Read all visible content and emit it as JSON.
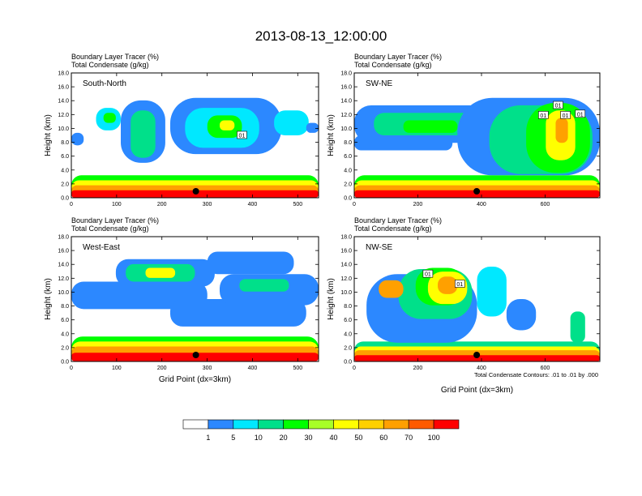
{
  "chart_data": {
    "type": "heatmap",
    "title": "2013-08-13_12:00:00",
    "colorbar": {
      "colors": [
        "#ffffff",
        "#2c88ff",
        "#00e8ff",
        "#00e08a",
        "#00ff00",
        "#a8ff28",
        "#ffff00",
        "#ffd000",
        "#ffa000",
        "#ff5a00",
        "#ff0000"
      ],
      "labels": [
        "1",
        "5",
        "10",
        "20",
        "30",
        "40",
        "50",
        "60",
        "70",
        "100"
      ]
    },
    "panels": [
      {
        "name": "South-North",
        "line1": "Boundary Layer Tracer   (%)",
        "line2": "Total Condensate   (g/kg)",
        "ylabel": "Height (km)",
        "xlabel": "",
        "xlim": [
          0,
          546
        ],
        "ylim": [
          0,
          18
        ],
        "xticks": [
          0,
          100,
          200,
          300,
          400,
          500
        ],
        "yticks": [
          "0.0",
          "2.0",
          "4.0",
          "6.0",
          "8.0",
          "10.0",
          "12.0",
          "14.0",
          "16.0",
          "18.0"
        ],
        "marker_x": 275,
        "contour_labels": [
          "01"
        ],
        "note": ""
      },
      {
        "name": "SW-NE",
        "line1": "Boundary Layer Tracer   (%)",
        "line2": "Total Condensate   (g/kg)",
        "ylabel": "Height (km)",
        "xlabel": "",
        "xlim": [
          0,
          772
        ],
        "ylim": [
          0,
          18
        ],
        "xticks": [
          0,
          200,
          400,
          600
        ],
        "yticks": [
          "0.0",
          "2.0",
          "4.0",
          "6.0",
          "8.0",
          "10.0",
          "12.0",
          "14.0",
          "16.0",
          "18.0"
        ],
        "marker_x": 385,
        "contour_labels": [
          "01",
          "01",
          "01",
          "01"
        ],
        "note": ""
      },
      {
        "name": "West-East",
        "line1": "Boundary Layer Tracer   (%)",
        "line2": "Total Condensate   (g/kg)",
        "ylabel": "Height (km)",
        "xlabel": "Grid Point (dx=3km)",
        "xlim": [
          0,
          546
        ],
        "ylim": [
          0,
          18
        ],
        "xticks": [
          0,
          100,
          200,
          300,
          400,
          500
        ],
        "yticks": [
          "0.0",
          "2.0",
          "4.0",
          "6.0",
          "8.0",
          "10.0",
          "12.0",
          "14.0",
          "16.0",
          "18.0"
        ],
        "marker_x": 275,
        "contour_labels": [],
        "note": ""
      },
      {
        "name": "NW-SE",
        "line1": "Boundary Layer Tracer   (%)",
        "line2": "Total Condensate   (g/kg)",
        "ylabel": "Height (km)",
        "xlabel": "Grid Point (dx=3km)",
        "xlim": [
          0,
          772
        ],
        "ylim": [
          0,
          18
        ],
        "xticks": [
          0,
          200,
          400,
          600
        ],
        "yticks": [
          "0.0",
          "2.0",
          "4.0",
          "6.0",
          "8.0",
          "10.0",
          "12.0",
          "14.0",
          "16.0",
          "18.0"
        ],
        "marker_x": 385,
        "contour_labels": [
          "01",
          "01"
        ],
        "note": "Total Condensate Contours: .01 to .01 by .000"
      }
    ]
  }
}
